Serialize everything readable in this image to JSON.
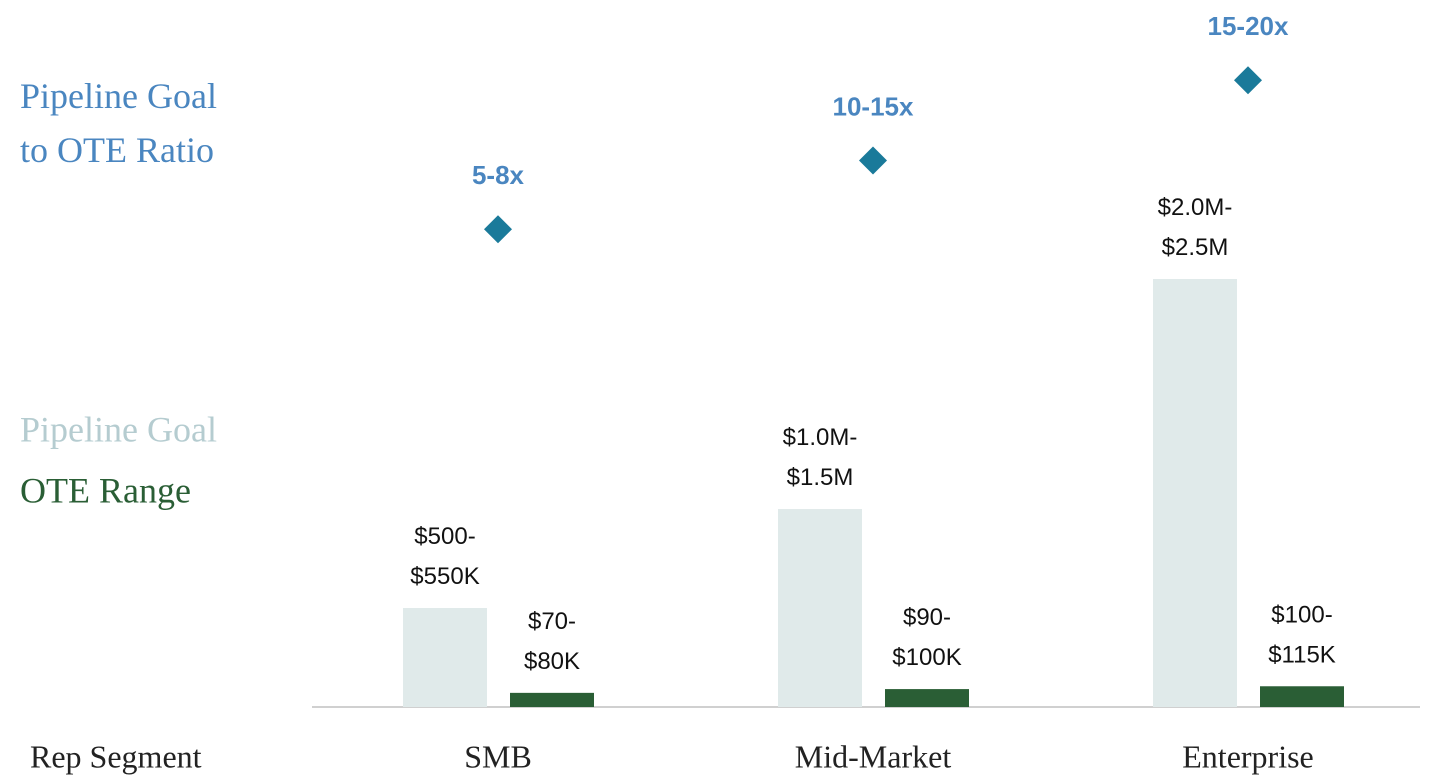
{
  "chart_data": {
    "type": "bar",
    "categories": [
      "SMB",
      "Mid-Market",
      "Enterprise"
    ],
    "x_label": "Rep Segment",
    "ylim": [
      0,
      3750000
    ],
    "y2lim": [
      0,
      26
    ],
    "series": [
      {
        "name": "Pipeline Goal",
        "color": "#e0eaea",
        "values": [
          525000,
          1050000,
          2270000
        ],
        "value_labels": [
          "$500-$550K",
          "$1.0M-$1.5M",
          "$2.0M-$2.5M"
        ]
      },
      {
        "name": "OTE Range",
        "color": "#2a5e35",
        "values": [
          75000,
          95000,
          110000
        ],
        "value_labels": [
          "$70-$80K",
          "$90-$100K",
          "$100-$115K"
        ]
      },
      {
        "name": "Pipeline Goal to OTE Ratio",
        "type": "scatter",
        "axis": "y2",
        "color": "#1a7a9a",
        "label_color": "#4a86c0",
        "values": [
          6,
          12,
          19
        ],
        "value_labels": [
          "5-8x",
          "10-15x",
          "15-20x"
        ]
      }
    ]
  }
}
